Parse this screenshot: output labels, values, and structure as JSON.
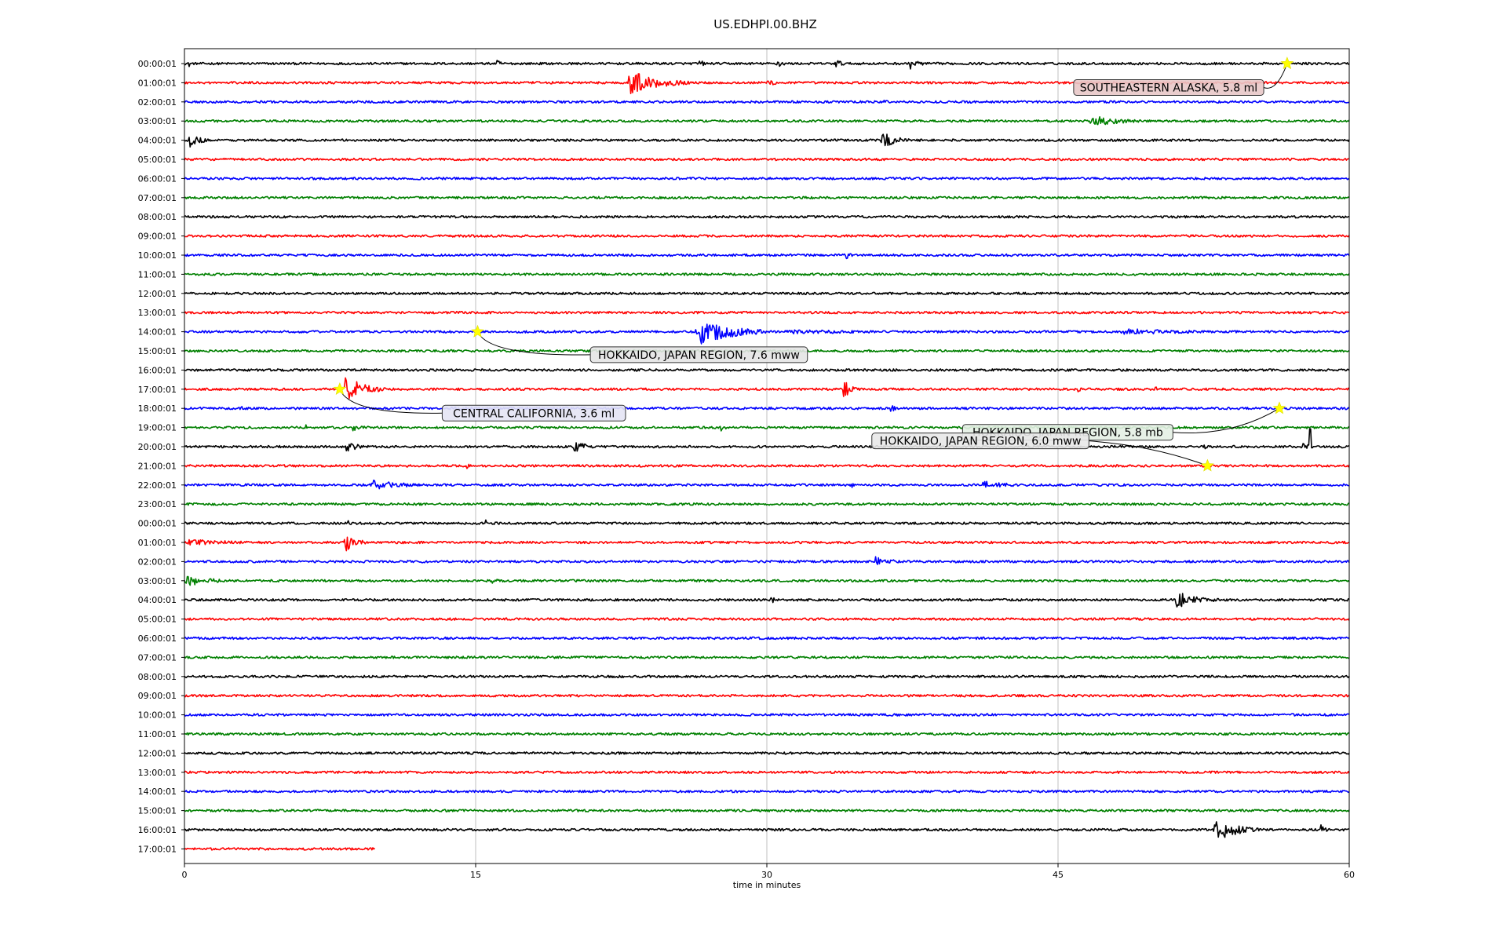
{
  "chart_data": {
    "type": "line",
    "title": "US.EDHPI.00.BHZ",
    "xlabel": "time in minutes",
    "xlim": [
      0,
      60
    ],
    "xticks": [
      0,
      15,
      30,
      45,
      60
    ],
    "grid": "vertical lines at x ticks",
    "colors": [
      "#000000",
      "#ff0000",
      "#0000ff",
      "#008000"
    ],
    "row_labels": [
      "00:00:01",
      "01:00:01",
      "02:00:01",
      "03:00:01",
      "04:00:01",
      "05:00:01",
      "06:00:01",
      "07:00:01",
      "08:00:01",
      "09:00:01",
      "10:00:01",
      "11:00:01",
      "12:00:01",
      "13:00:01",
      "14:00:01",
      "15:00:01",
      "16:00:01",
      "17:00:01",
      "18:00:01",
      "19:00:01",
      "20:00:01",
      "21:00:01",
      "22:00:01",
      "23:00:01",
      "00:00:01",
      "01:00:01",
      "02:00:01",
      "03:00:01",
      "04:00:01",
      "05:00:01",
      "06:00:01",
      "07:00:01",
      "08:00:01",
      "09:00:01",
      "10:00:01",
      "11:00:01",
      "12:00:01",
      "13:00:01",
      "14:00:01",
      "15:00:01",
      "16:00:01",
      "17:00:01"
    ],
    "last_row_end_minutes": 9.8,
    "noise_level": 0.12,
    "bursts": [
      {
        "row": 0,
        "t": 0.2,
        "dur": 0.4,
        "amp": 0.5
      },
      {
        "row": 0,
        "t": 16.0,
        "dur": 0.8,
        "amp": 0.5
      },
      {
        "row": 0,
        "t": 26.5,
        "dur": 0.6,
        "amp": 0.5
      },
      {
        "row": 0,
        "t": 30.5,
        "dur": 0.6,
        "amp": 0.7
      },
      {
        "row": 0,
        "t": 33.5,
        "dur": 0.8,
        "amp": 0.6
      },
      {
        "row": 0,
        "t": 37.3,
        "dur": 1.2,
        "amp": 0.7
      },
      {
        "row": 1,
        "t": 22.8,
        "dur": 3.2,
        "amp": 1.5
      },
      {
        "row": 1,
        "t": 30.0,
        "dur": 1.0,
        "amp": 0.6
      },
      {
        "row": 2,
        "t": 36.0,
        "dur": 0.8,
        "amp": 0.3
      },
      {
        "row": 3,
        "t": 46.5,
        "dur": 3.5,
        "amp": 0.7
      },
      {
        "row": 4,
        "t": 0.2,
        "dur": 1.2,
        "amp": 0.9
      },
      {
        "row": 4,
        "t": 6.8,
        "dur": 0.4,
        "amp": 0.3
      },
      {
        "row": 4,
        "t": 35.8,
        "dur": 1.6,
        "amp": 1.2
      },
      {
        "row": 10,
        "t": 34.0,
        "dur": 0.8,
        "amp": 0.5
      },
      {
        "row": 13,
        "t": 21.8,
        "dur": 0.8,
        "amp": 0.4
      },
      {
        "row": 14,
        "t": 15.2,
        "dur": 11.0,
        "amp": 0.15
      },
      {
        "row": 14,
        "t": 26.3,
        "dur": 4.0,
        "amp": 1.6
      },
      {
        "row": 14,
        "t": 30.3,
        "dur": 18.0,
        "amp": 0.25
      },
      {
        "row": 14,
        "t": 48.0,
        "dur": 8.0,
        "amp": 0.4
      },
      {
        "row": 15,
        "t": 0.0,
        "dur": 6.0,
        "amp": 0.2
      },
      {
        "row": 17,
        "t": 8.2,
        "dur": 2.2,
        "amp": 1.6
      },
      {
        "row": 17,
        "t": 33.9,
        "dur": 0.8,
        "amp": 1.2
      },
      {
        "row": 17,
        "t": 46.0,
        "dur": 0.3,
        "amp": 0.5
      },
      {
        "row": 17,
        "t": 50.0,
        "dur": 0.3,
        "amp": 0.5
      },
      {
        "row": 18,
        "t": 2.9,
        "dur": 0.3,
        "amp": 0.6
      },
      {
        "row": 18,
        "t": 30.0,
        "dur": 0.4,
        "amp": 0.6
      },
      {
        "row": 18,
        "t": 36.3,
        "dur": 0.5,
        "amp": 0.7
      },
      {
        "row": 19,
        "t": 6.2,
        "dur": 0.5,
        "amp": 0.5
      },
      {
        "row": 19,
        "t": 8.6,
        "dur": 1.2,
        "amp": 0.6
      },
      {
        "row": 19,
        "t": 27.6,
        "dur": 0.6,
        "amp": 0.5
      },
      {
        "row": 20,
        "t": 8.3,
        "dur": 1.2,
        "amp": 0.7
      },
      {
        "row": 20,
        "t": 20.0,
        "dur": 1.5,
        "amp": 0.7
      },
      {
        "row": 20,
        "t": 52.5,
        "dur": 0.4,
        "amp": 0.4
      },
      {
        "row": 20,
        "t": 57.5,
        "dur": 0.8,
        "amp": 0.6
      },
      {
        "row": 21,
        "t": 11.0,
        "dur": 0.3,
        "amp": 0.4
      },
      {
        "row": 21,
        "t": 14.5,
        "dur": 0.3,
        "amp": 0.5
      },
      {
        "row": 22,
        "t": 9.5,
        "dur": 4.0,
        "amp": 0.6
      },
      {
        "row": 22,
        "t": 34.3,
        "dur": 0.6,
        "amp": 0.4
      },
      {
        "row": 22,
        "t": 41.0,
        "dur": 3.0,
        "amp": 0.5
      },
      {
        "row": 24,
        "t": 8.4,
        "dur": 0.4,
        "amp": 0.6
      },
      {
        "row": 24,
        "t": 15.5,
        "dur": 0.4,
        "amp": 0.4
      },
      {
        "row": 25,
        "t": 0.0,
        "dur": 6.0,
        "amp": 0.4
      },
      {
        "row": 25,
        "t": 8.2,
        "dur": 1.2,
        "amp": 1.3
      },
      {
        "row": 26,
        "t": 35.5,
        "dur": 2.0,
        "amp": 0.6
      },
      {
        "row": 27,
        "t": 0.0,
        "dur": 2.6,
        "amp": 0.8
      },
      {
        "row": 27,
        "t": 15.8,
        "dur": 0.8,
        "amp": 0.4
      },
      {
        "row": 28,
        "t": 30.2,
        "dur": 0.6,
        "amp": 0.5
      },
      {
        "row": 28,
        "t": 51.0,
        "dur": 2.5,
        "amp": 1.0
      },
      {
        "row": 40,
        "t": 53.0,
        "dur": 2.5,
        "amp": 1.4
      },
      {
        "row": 40,
        "t": 58.5,
        "dur": 0.8,
        "amp": 0.6
      }
    ],
    "spikes": [
      {
        "row": 20,
        "t": 58.0,
        "depth": 1.9
      }
    ],
    "events": [
      {
        "row": 0,
        "t": 56.8,
        "label": "SOUTHEASTERN ALASKA, 5.8 ml",
        "label_row": 1.25,
        "label_t": 50.7,
        "label_color": "#e8c8c8"
      },
      {
        "row": 14,
        "t": 15.1,
        "label": "HOKKAIDO, JAPAN REGION, 7.6 mww",
        "label_row": 15.2,
        "label_t": 26.5,
        "label_color": "#e4e4e4"
      },
      {
        "row": 17,
        "t": 8.0,
        "label": "CENTRAL CALIFORNIA, 3.6 ml",
        "label_row": 18.25,
        "label_t": 18.0,
        "label_color": "#e4e4f4"
      },
      {
        "row": 18,
        "t": 56.4,
        "label": "HOKKAIDO, JAPAN REGION, 5.8 mb",
        "label_row": 19.25,
        "label_t": 45.5,
        "label_color": "#e4f0e4"
      },
      {
        "row": 21,
        "t": 52.7,
        "label": "HOKKAIDO, JAPAN REGION, 6.0 mww",
        "label_row": 19.7,
        "label_t": 41.0,
        "label_color": "#e8e8e8"
      }
    ]
  }
}
